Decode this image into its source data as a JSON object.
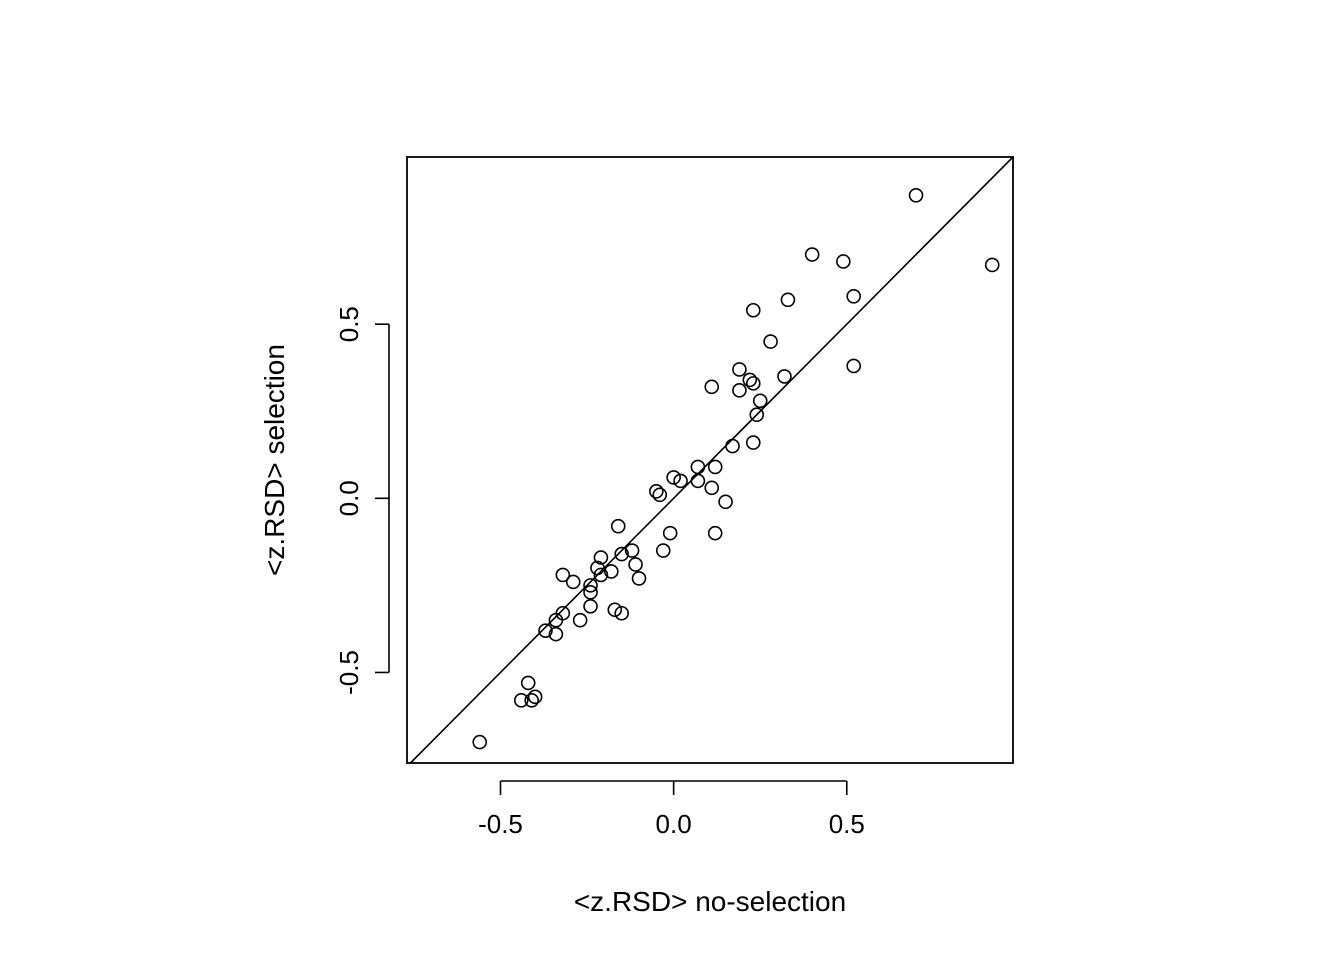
{
  "chart_data": {
    "type": "scatter",
    "title": "",
    "xlabel": "<z.RSD> no-selection",
    "ylabel": "<z.RSD> selection",
    "xlim": [
      -0.77,
      0.98
    ],
    "ylim": [
      -0.76,
      0.98
    ],
    "xticks": [
      -0.5,
      0.0,
      0.5
    ],
    "yticks": [
      -0.5,
      0.0,
      0.5
    ],
    "xtick_labels": [
      "-0.5",
      "0.0",
      "0.5"
    ],
    "ytick_labels": [
      "-0.5",
      "0.0",
      "0.5"
    ],
    "reference_line": "y = x",
    "grid": false,
    "legend": "none",
    "marker": "open-circle",
    "points": [
      {
        "x": 0.7,
        "y": 0.87
      },
      {
        "x": 0.92,
        "y": 0.67
      },
      {
        "x": 0.4,
        "y": 0.7
      },
      {
        "x": 0.49,
        "y": 0.68
      },
      {
        "x": 0.33,
        "y": 0.57
      },
      {
        "x": 0.52,
        "y": 0.58
      },
      {
        "x": 0.23,
        "y": 0.54
      },
      {
        "x": 0.28,
        "y": 0.45
      },
      {
        "x": 0.52,
        "y": 0.38
      },
      {
        "x": 0.19,
        "y": 0.37
      },
      {
        "x": 0.32,
        "y": 0.35
      },
      {
        "x": 0.22,
        "y": 0.34
      },
      {
        "x": 0.23,
        "y": 0.33
      },
      {
        "x": 0.11,
        "y": 0.32
      },
      {
        "x": 0.19,
        "y": 0.31
      },
      {
        "x": 0.25,
        "y": 0.28
      },
      {
        "x": 0.24,
        "y": 0.24
      },
      {
        "x": 0.23,
        "y": 0.16
      },
      {
        "x": 0.17,
        "y": 0.15
      },
      {
        "x": 0.12,
        "y": 0.09
      },
      {
        "x": 0.07,
        "y": 0.09
      },
      {
        "x": 0.0,
        "y": 0.06
      },
      {
        "x": 0.02,
        "y": 0.05
      },
      {
        "x": 0.07,
        "y": 0.05
      },
      {
        "x": 0.11,
        "y": 0.03
      },
      {
        "x": -0.05,
        "y": 0.02
      },
      {
        "x": -0.04,
        "y": 0.01
      },
      {
        "x": 0.15,
        "y": -0.01
      },
      {
        "x": -0.16,
        "y": -0.08
      },
      {
        "x": -0.01,
        "y": -0.1
      },
      {
        "x": 0.12,
        "y": -0.1
      },
      {
        "x": -0.03,
        "y": -0.15
      },
      {
        "x": -0.12,
        "y": -0.15
      },
      {
        "x": -0.21,
        "y": -0.17
      },
      {
        "x": -0.15,
        "y": -0.16
      },
      {
        "x": -0.11,
        "y": -0.19
      },
      {
        "x": -0.22,
        "y": -0.2
      },
      {
        "x": -0.18,
        "y": -0.21
      },
      {
        "x": -0.21,
        "y": -0.22
      },
      {
        "x": -0.32,
        "y": -0.22
      },
      {
        "x": -0.1,
        "y": -0.23
      },
      {
        "x": -0.29,
        "y": -0.24
      },
      {
        "x": -0.24,
        "y": -0.25
      },
      {
        "x": -0.24,
        "y": -0.27
      },
      {
        "x": -0.24,
        "y": -0.31
      },
      {
        "x": -0.17,
        "y": -0.32
      },
      {
        "x": -0.15,
        "y": -0.33
      },
      {
        "x": -0.32,
        "y": -0.33
      },
      {
        "x": -0.27,
        "y": -0.35
      },
      {
        "x": -0.34,
        "y": -0.35
      },
      {
        "x": -0.37,
        "y": -0.38
      },
      {
        "x": -0.34,
        "y": -0.39
      },
      {
        "x": -0.42,
        "y": -0.53
      },
      {
        "x": -0.4,
        "y": -0.57
      },
      {
        "x": -0.41,
        "y": -0.58
      },
      {
        "x": -0.44,
        "y": -0.58
      },
      {
        "x": -0.56,
        "y": -0.7
      }
    ]
  }
}
